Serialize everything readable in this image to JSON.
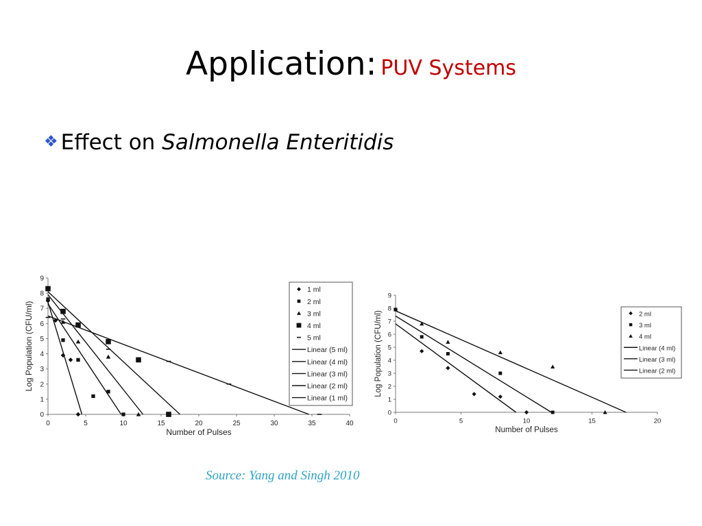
{
  "slide": {
    "title": "Application:",
    "subtitle": "PUV Systems",
    "bullet_prefix": "Effect on ",
    "bullet_italic": "Salmonella Enteritidis",
    "bullet_icon": "diamond-bullet-icon",
    "source": "Source: Yang and Singh 2010",
    "colors": {
      "title": "#000000",
      "subtitle": "#c00000",
      "bullet_icon": "#2b55c8",
      "source": "#2fa3c3"
    }
  },
  "chart_data": [
    {
      "type": "scatter",
      "title": "",
      "xlabel": "Number of Pulses",
      "ylabel": "Log Population (CFU/ml)",
      "xlim": [
        0,
        40
      ],
      "ylim": [
        0,
        9
      ],
      "xticks": [
        0,
        5,
        10,
        15,
        20,
        25,
        30,
        35,
        40
      ],
      "yticks": [
        0,
        1,
        2,
        3,
        4,
        5,
        6,
        7,
        8,
        9
      ],
      "legend": "right",
      "series": [
        {
          "name": "1 ml",
          "marker": "diamond",
          "x": [
            0,
            1,
            2,
            3,
            4
          ],
          "y": [
            7.5,
            6.2,
            3.9,
            3.6,
            0
          ]
        },
        {
          "name": "2 ml",
          "marker": "square",
          "x": [
            0,
            2,
            4,
            6,
            8,
            10
          ],
          "y": [
            7.6,
            4.9,
            3.6,
            1.2,
            1.5,
            0
          ]
        },
        {
          "name": "3 ml",
          "marker": "triangle",
          "x": [
            0,
            2,
            4,
            8,
            12
          ],
          "y": [
            7.6,
            6.1,
            4.8,
            3.8,
            0
          ]
        },
        {
          "name": "4 ml",
          "marker": "bigsquare",
          "x": [
            0,
            2,
            4,
            8,
            12,
            16
          ],
          "y": [
            8.3,
            6.8,
            5.9,
            4.8,
            3.6,
            0
          ]
        },
        {
          "name": "5 ml",
          "marker": "dash",
          "x": [
            0,
            2,
            8,
            16,
            24,
            36
          ],
          "y": [
            6.4,
            6.3,
            4.3,
            3.5,
            2.0,
            0
          ]
        }
      ],
      "fits": [
        {
          "name": "Linear (5 ml)",
          "x": [
            0,
            34.6
          ],
          "y": [
            6.5,
            0
          ]
        },
        {
          "name": "Linear (4 ml)",
          "x": [
            0,
            17.5
          ],
          "y": [
            8.1,
            0
          ]
        },
        {
          "name": "Linear (3 ml)",
          "x": [
            0,
            12.6
          ],
          "y": [
            7.9,
            0
          ]
        },
        {
          "name": "Linear (2 ml)",
          "x": [
            0,
            9.7
          ],
          "y": [
            7.3,
            0
          ]
        },
        {
          "name": "Linear (1 ml)",
          "x": [
            0,
            4.5
          ],
          "y": [
            7.4,
            0
          ]
        }
      ]
    },
    {
      "type": "scatter",
      "title": "",
      "xlabel": "Number of Pulses",
      "ylabel": "Log Population (CFU/ml)",
      "xlim": [
        0,
        20
      ],
      "ylim": [
        0,
        9
      ],
      "xticks": [
        0,
        5,
        10,
        15,
        20
      ],
      "yticks": [
        0,
        1,
        2,
        3,
        4,
        5,
        6,
        7,
        8,
        9
      ],
      "legend": "right",
      "series": [
        {
          "name": "2 ml",
          "marker": "diamond",
          "x": [
            0,
            2,
            4,
            6,
            8,
            10
          ],
          "y": [
            7.9,
            4.7,
            3.4,
            1.4,
            1.2,
            0
          ]
        },
        {
          "name": "3 ml",
          "marker": "square",
          "x": [
            0,
            2,
            4,
            8,
            12
          ],
          "y": [
            7.9,
            5.8,
            4.5,
            3.0,
            0
          ]
        },
        {
          "name": "4 ml",
          "marker": "triangle",
          "x": [
            0,
            2,
            4,
            8,
            12,
            16
          ],
          "y": [
            7.9,
            6.8,
            5.4,
            4.6,
            3.5,
            0
          ]
        }
      ],
      "fits": [
        {
          "name": "Linear (4 ml)",
          "x": [
            0,
            17.6
          ],
          "y": [
            7.8,
            0
          ]
        },
        {
          "name": "Linear (3 ml)",
          "x": [
            0,
            11.9
          ],
          "y": [
            7.4,
            0
          ]
        },
        {
          "name": "Linear (2 ml)",
          "x": [
            0,
            9.2
          ],
          "y": [
            6.8,
            0
          ]
        }
      ]
    }
  ]
}
